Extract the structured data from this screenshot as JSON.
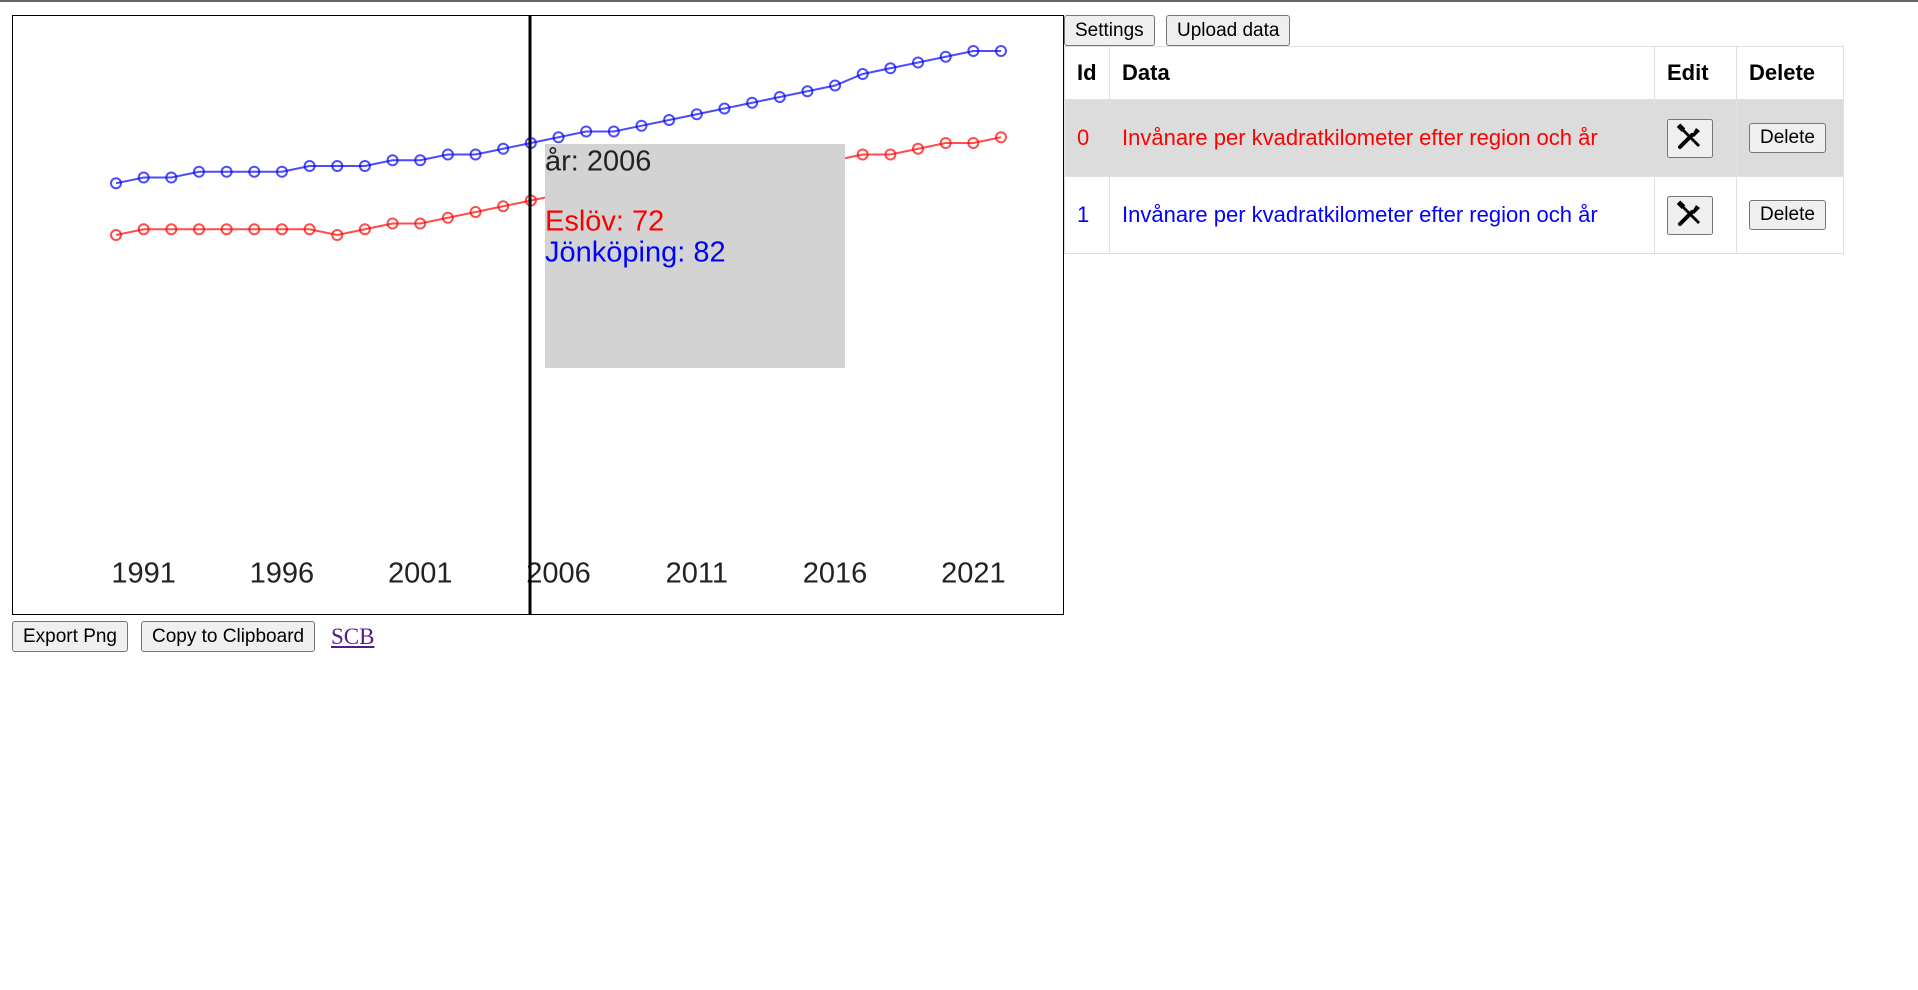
{
  "toolbar": {
    "settings": "Settings",
    "upload": "Upload data"
  },
  "chart_data": {
    "type": "line",
    "x": [
      1990,
      1991,
      1992,
      1993,
      1994,
      1995,
      1996,
      1997,
      1998,
      1999,
      2000,
      2001,
      2002,
      2003,
      2004,
      2005,
      2006,
      2007,
      2008,
      2009,
      2010,
      2011,
      2012,
      2013,
      2014,
      2015,
      2016,
      2017,
      2018,
      2019,
      2020,
      2021,
      2022
    ],
    "xlim": [
      1990,
      2022
    ],
    "xticks": [
      1991,
      1996,
      2001,
      2006,
      2011,
      2016,
      2021
    ],
    "series": [
      {
        "color": "#ff0000",
        "values": [
          65,
          66,
          66,
          66,
          66,
          66,
          66,
          66,
          65,
          66,
          67,
          67,
          68,
          69,
          70,
          71,
          72,
          73,
          73,
          74,
          75,
          75,
          76,
          77,
          77,
          78,
          78,
          79,
          79,
          80,
          81,
          81,
          82
        ]
      },
      {
        "color": "#0000ff",
        "values": [
          74,
          75,
          75,
          76,
          76,
          76,
          76,
          77,
          77,
          77,
          78,
          78,
          79,
          79,
          80,
          81,
          82,
          83,
          83,
          84,
          85,
          86,
          87,
          88,
          89,
          90,
          91,
          93,
          94,
          95,
          96,
          97,
          97
        ]
      }
    ],
    "tooltip": {
      "title": "år: 2006",
      "lines": [
        "Eslöv: 72",
        "Jönköping: 82"
      ]
    }
  },
  "table": {
    "headers": [
      "Id",
      "Data",
      "Edit",
      "Delete"
    ],
    "rows": [
      {
        "id": 0,
        "data": "Invånare per kvadratkilometer efter region och år",
        "delete": "Delete"
      },
      {
        "id": 1,
        "data": "Invånare per kvadratkilometer efter region och år",
        "delete": "Delete"
      }
    ]
  },
  "footer": {
    "export": "Export Png",
    "copy": "Copy to Clipboard",
    "link": "SCB"
  }
}
